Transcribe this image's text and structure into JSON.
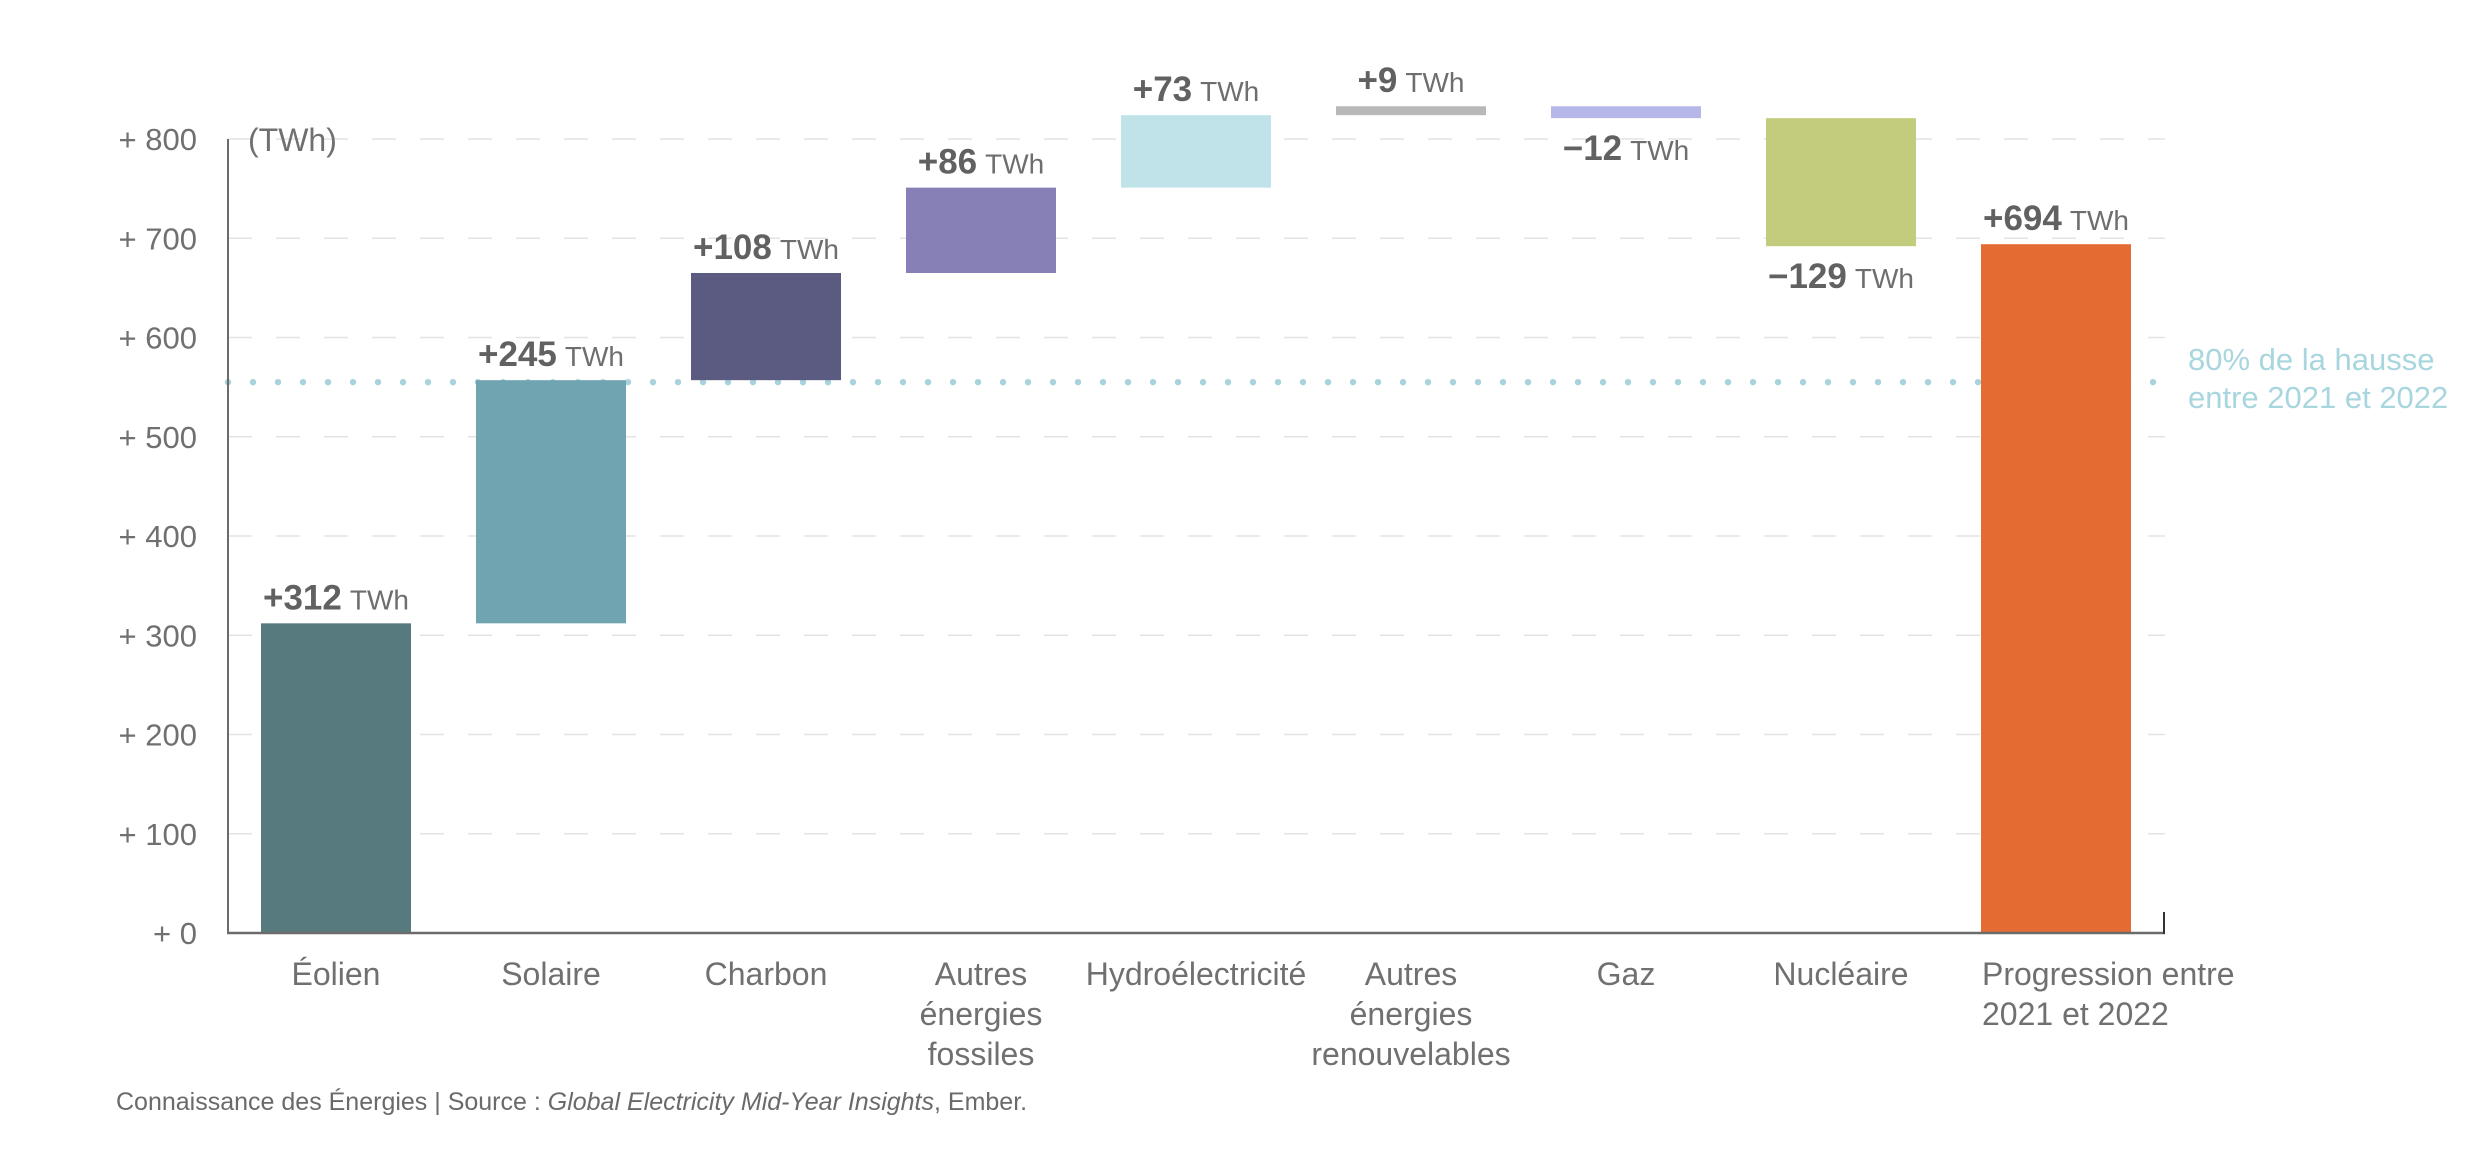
{
  "chart_data": {
    "type": "bar",
    "subtype": "waterfall",
    "ylabel": "(TWh)",
    "unit": "TWh",
    "ylim": [
      0,
      800
    ],
    "yticks": [
      0,
      100,
      200,
      300,
      400,
      500,
      600,
      700,
      800
    ],
    "ytick_labels": [
      "+ 0",
      "+ 100",
      "+ 200",
      "+ 300",
      "+ 400",
      "+ 500",
      "+ 600",
      "+ 700",
      "+ 800"
    ],
    "grid": true,
    "categories": [
      [
        "Éolien"
      ],
      [
        "Solaire"
      ],
      [
        "Charbon"
      ],
      [
        "Autres",
        "énergies",
        "fossiles"
      ],
      [
        "Hydroélectricité"
      ],
      [
        "Autres",
        "énergies",
        "renouvelables"
      ],
      [
        "Gaz"
      ],
      [
        "Nucléaire"
      ],
      [
        "Progression entre",
        "2021 et 2022"
      ]
    ],
    "values": [
      312,
      245,
      108,
      86,
      73,
      9,
      -12,
      -129,
      694
    ],
    "value_labels": [
      "+312",
      "+245",
      "+108",
      "+86",
      "+73",
      "+9",
      "−12",
      "−129",
      "+694"
    ],
    "is_total": [
      false,
      false,
      false,
      false,
      false,
      false,
      false,
      false,
      true
    ],
    "colors": [
      "#577a7e",
      "#70a4b1",
      "#5b5a80",
      "#8680b6",
      "#c0e3e9",
      "#b8b8b8",
      "#b5b7e8",
      "#c2cc7c",
      "#e46c33"
    ],
    "reference_line": {
      "value": 555,
      "style": "dotted",
      "color": "#a8d2dc",
      "label": [
        "80% de la hausse",
        "entre 2021 et 2022"
      ]
    }
  },
  "footer": {
    "prefix": "Connaissance des Énergies | Source : ",
    "title": "Global Electricity Mid-Year Insights",
    "suffix": ", Ember."
  }
}
